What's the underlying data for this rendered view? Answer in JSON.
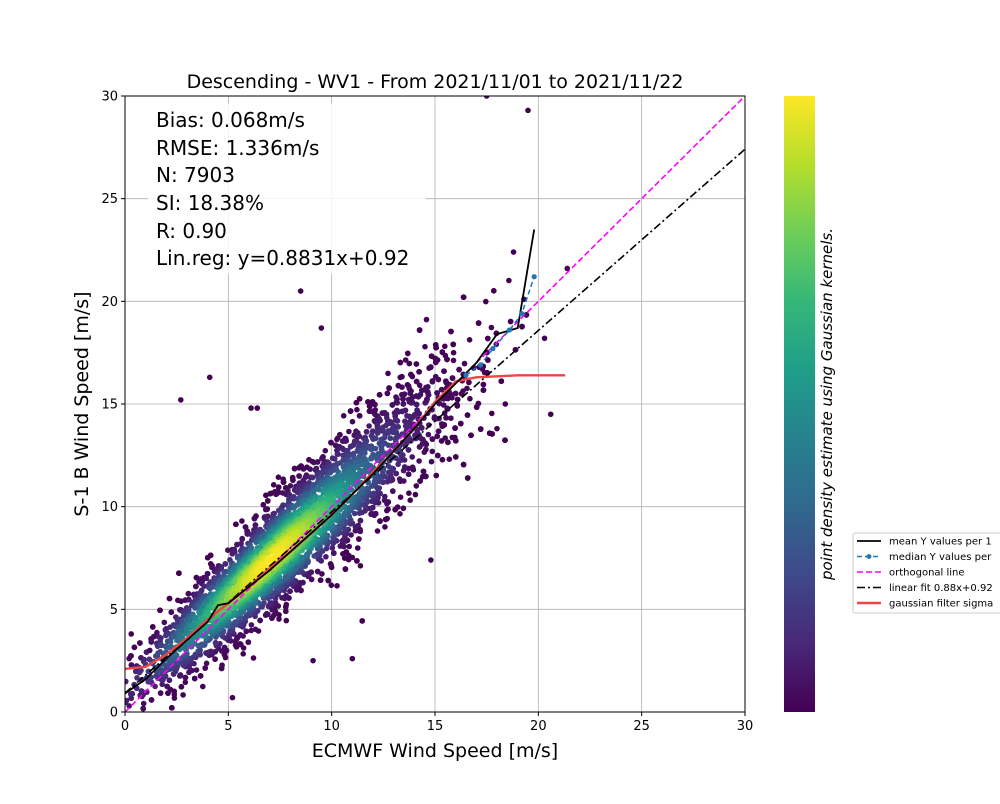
{
  "chart_data": {
    "type": "scatter",
    "title": "Descending - WV1 - From 2021/11/01 to 2021/11/22",
    "xlabel": "ECMWF Wind Speed [m/s]",
    "ylabel": "S-1 B Wind Speed [m/s]",
    "xlim": [
      0,
      30
    ],
    "ylim": [
      0,
      30
    ],
    "xticks": [
      "0",
      "5",
      "10",
      "15",
      "20",
      "25",
      "30"
    ],
    "yticks": [
      "0",
      "5",
      "10",
      "15",
      "20",
      "25",
      "30"
    ],
    "grid": true,
    "stats": [
      "Bias: 0.068m/s",
      "RMSE: 1.336m/s",
      "N: 7903",
      "SI: 18.38%",
      "R: 0.90",
      "Lin.reg: y=0.8831x+0.92"
    ],
    "colorbar_label": "point density estimate using Gaussian kernels.",
    "colormap": [
      "#440154",
      "#482878",
      "#3e4989",
      "#31688e",
      "#26828e",
      "#1f9e89",
      "#35b779",
      "#6ece58",
      "#b5de2b",
      "#fde725"
    ],
    "legend_position": "right, outside plot",
    "legend": [
      {
        "label": "mean Y values per 1",
        "color": "#000000",
        "style": "solid"
      },
      {
        "label": "median Y values per",
        "color": "#1f77b4",
        "style": "dashed-marker"
      },
      {
        "label": "orthogonal line",
        "color": "#ff00ff",
        "style": "dashed"
      },
      {
        "label": "linear fit 0.88x+0.92",
        "color": "#000000",
        "style": "dashdot"
      },
      {
        "label": "gaussian filter sigma",
        "color": "#ee4444",
        "style": "solid"
      }
    ],
    "series": [
      {
        "name": "orthogonal line",
        "color": "#ff00ff",
        "x": [
          0,
          30
        ],
        "y": [
          0,
          30
        ]
      },
      {
        "name": "linear fit 0.88x+0.92",
        "color": "#000000",
        "x": [
          0,
          30
        ],
        "y": [
          0.92,
          27.41
        ]
      },
      {
        "name": "mean Y values per 1",
        "color": "#000000",
        "x": [
          0,
          1,
          2,
          3,
          4,
          4.5,
          5,
          6,
          7,
          8,
          9,
          10,
          11,
          12,
          13,
          14,
          15,
          16,
          17,
          18,
          19,
          19.8
        ],
        "y": [
          0.9,
          1.6,
          2.6,
          3.5,
          4.4,
          5.2,
          5.3,
          6.1,
          6.9,
          7.8,
          8.7,
          9.6,
          10.6,
          11.6,
          12.7,
          13.8,
          15.0,
          16.0,
          17.0,
          18.4,
          18.7,
          23.5
        ]
      },
      {
        "name": "median Y values per",
        "color": "#1f77b4",
        "x": [
          16.5,
          17.2,
          17.8,
          18.6,
          19.2,
          19.8
        ],
        "y": [
          16.4,
          16.9,
          17.7,
          18.6,
          19.4,
          21.2
        ]
      },
      {
        "name": "gaussian filter sigma",
        "color": "#ee4444",
        "x": [
          0,
          1,
          2,
          3,
          4,
          5,
          6,
          7,
          8,
          9,
          10,
          11,
          12,
          13,
          14,
          15,
          16,
          17,
          18,
          19,
          20,
          21.3
        ],
        "y": [
          2.1,
          2.2,
          2.8,
          3.6,
          4.5,
          5.3,
          6.1,
          7.0,
          7.8,
          8.7,
          9.6,
          10.6,
          11.7,
          12.7,
          13.8,
          15.1,
          16.1,
          16.3,
          16.35,
          16.4,
          16.4,
          16.4
        ]
      }
    ],
    "outliers": [
      {
        "x": 17.5,
        "y": 30.0
      },
      {
        "x": 19.5,
        "y": 29.3
      },
      {
        "x": 18.8,
        "y": 22.4
      },
      {
        "x": 8.5,
        "y": 20.5
      },
      {
        "x": 9.5,
        "y": 18.7
      },
      {
        "x": 2.7,
        "y": 15.2
      },
      {
        "x": 4.1,
        "y": 16.3
      },
      {
        "x": 6.1,
        "y": 14.8
      },
      {
        "x": 6.4,
        "y": 14.8
      },
      {
        "x": 20.6,
        "y": 14.5
      },
      {
        "x": 21.4,
        "y": 21.6
      },
      {
        "x": 20.3,
        "y": 18.2
      },
      {
        "x": 19.3,
        "y": 20.1
      },
      {
        "x": 1.2,
        "y": 3.0
      },
      {
        "x": 0.3,
        "y": 3.8
      },
      {
        "x": 11.0,
        "y": 2.6
      },
      {
        "x": 9.1,
        "y": 2.5
      },
      {
        "x": 5.2,
        "y": 0.7
      },
      {
        "x": 14.8,
        "y": 7.4
      },
      {
        "x": 18.0,
        "y": 13.8
      }
    ]
  }
}
